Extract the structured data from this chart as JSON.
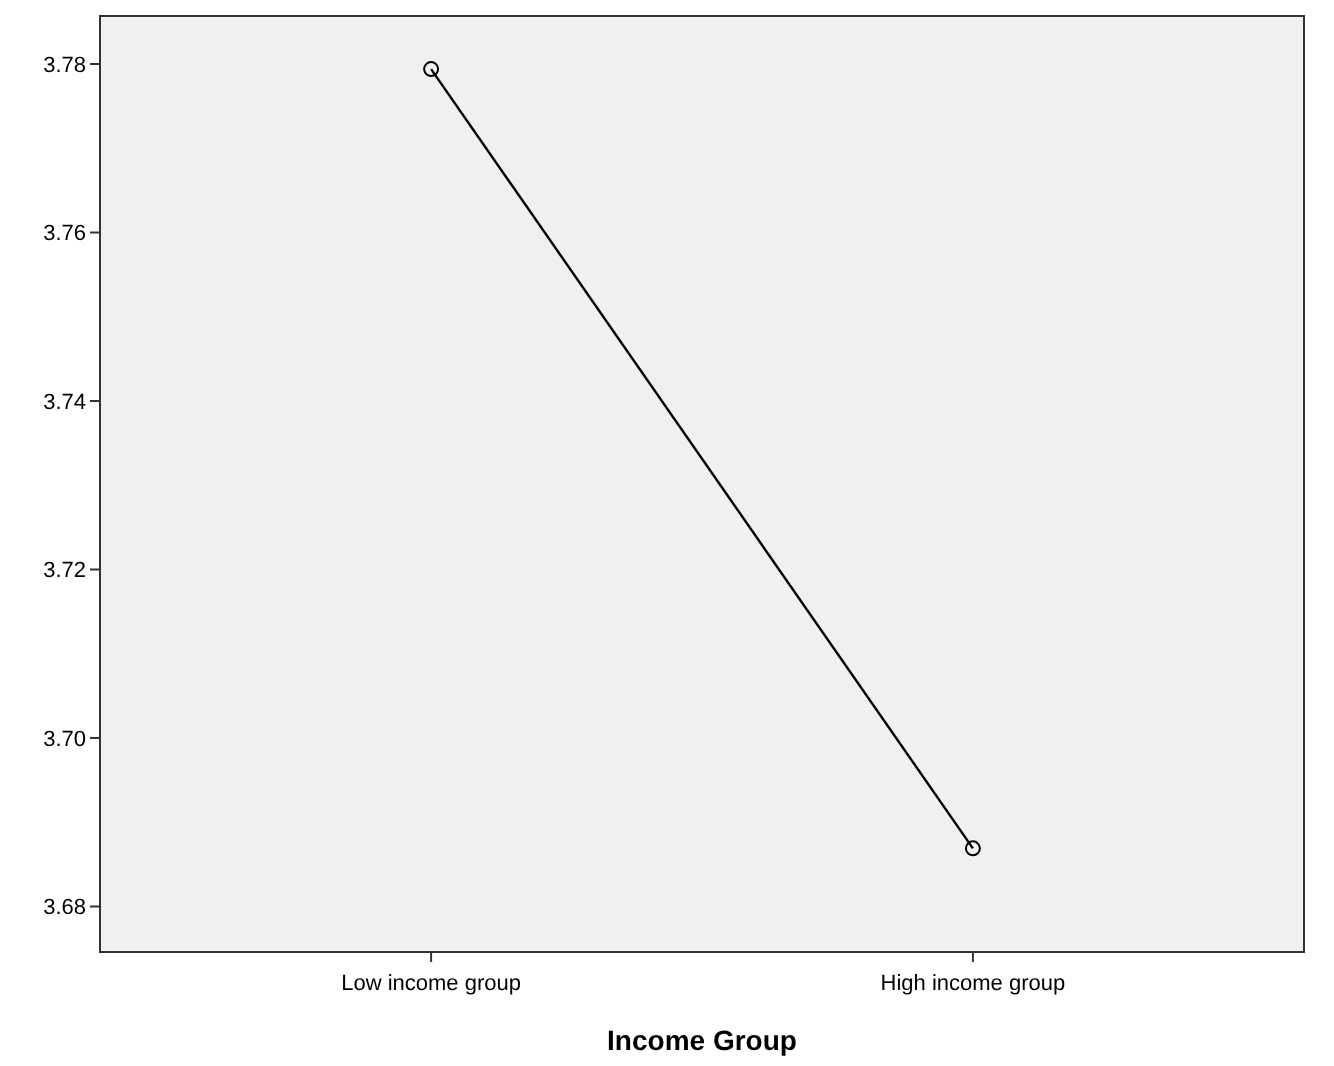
{
  "chart_data": {
    "type": "line",
    "xlabel": "Income Group",
    "categories": [
      "Low income group",
      "High income group"
    ],
    "series": [
      {
        "color": "#000000",
        "values": [
          3.7794,
          3.6869
        ]
      }
    ],
    "ylim": [
      3.6746,
      3.7857
    ],
    "yticks": [
      3.68,
      {
        "value": 3.7,
        "label": "3.70"
      },
      3.72,
      3.74,
      3.76,
      3.78
    ],
    "marker": "circle",
    "grid": false
  }
}
